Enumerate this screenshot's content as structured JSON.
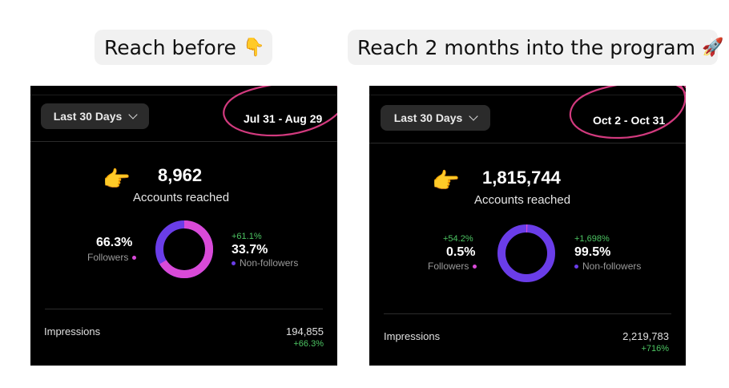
{
  "captions": {
    "before": "Reach before",
    "after": "Reach 2 months into the program",
    "before_icon": "pointing-down-hand-icon",
    "after_icon": "rocket-icon"
  },
  "colors": {
    "followers": "#d94ad8",
    "non_followers": "#6a3de8",
    "growth": "#4cc462",
    "annotation": "#d23a7e"
  },
  "panels": [
    {
      "range_button": "Last 30 Days",
      "date_range": "Jul 31 - Aug 29",
      "accounts_count": "8,962",
      "accounts_label": "Accounts reached",
      "followers": {
        "pct": "66.3%",
        "label": "Followers",
        "change": ""
      },
      "non_followers": {
        "pct": "33.7%",
        "label": "Non-followers",
        "change": "+61.1%"
      },
      "followers_share": 0.663,
      "impressions": {
        "label": "Impressions",
        "value": "194,855",
        "change": "+66.3%"
      }
    },
    {
      "range_button": "Last 30 Days",
      "date_range": "Oct 2 - Oct 31",
      "accounts_count": "1,815,744",
      "accounts_label": "Accounts reached",
      "followers": {
        "pct": "0.5%",
        "label": "Followers",
        "change": "+54.2%"
      },
      "non_followers": {
        "pct": "99.5%",
        "label": "Non-followers",
        "change": "+1,698%"
      },
      "followers_share": 0.005,
      "impressions": {
        "label": "Impressions",
        "value": "2,219,783",
        "change": "+716%"
      }
    }
  ]
}
